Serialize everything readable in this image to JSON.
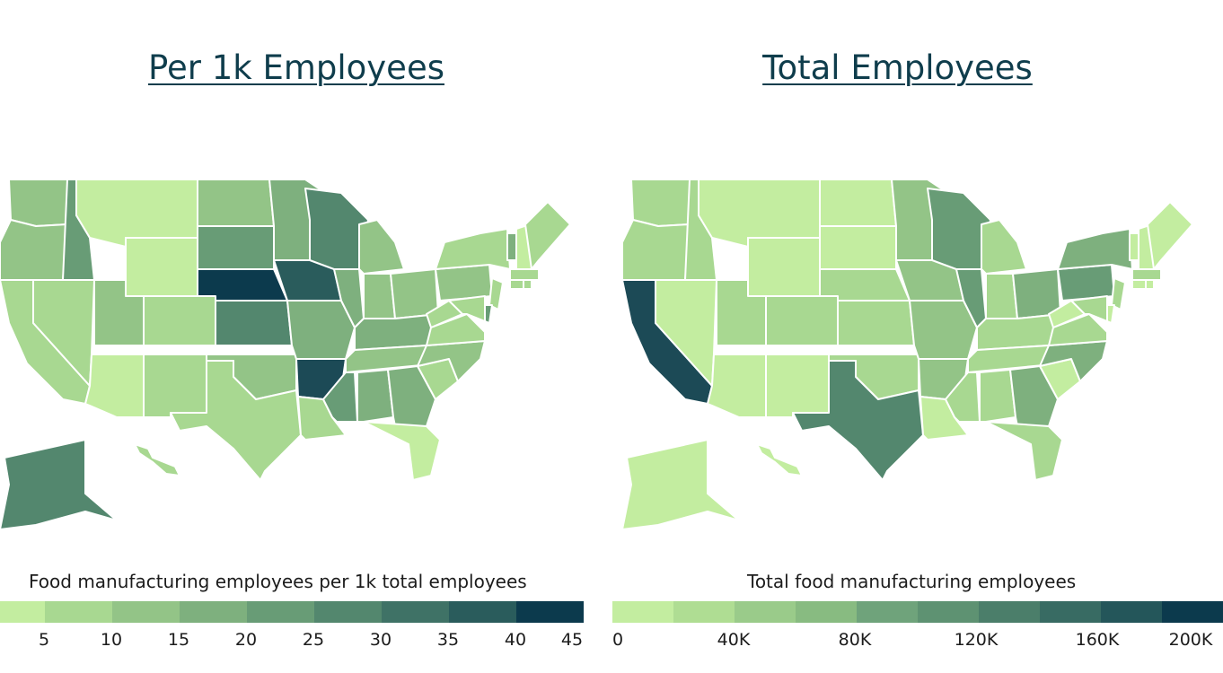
{
  "maps": [
    {
      "title": "Per 1k Employees",
      "legend_title": "Food manufacturing employees per 1k total employees",
      "legend_ticks": [
        "5",
        "10",
        "15",
        "20",
        "25",
        "30",
        "35",
        "40",
        "45"
      ],
      "legend_colors": [
        "#c3eda0",
        "#a8d891",
        "#93c487",
        "#7eb07e",
        "#689c76",
        "#53876e",
        "#3f7266",
        "#2a5c5c",
        "#0c3a4d"
      ],
      "states": [
        {
          "id": "WA",
          "fill": "#93c487"
        },
        {
          "id": "OR",
          "fill": "#93c487"
        },
        {
          "id": "CA",
          "fill": "#a8d891"
        },
        {
          "id": "ID",
          "fill": "#689c76"
        },
        {
          "id": "NV",
          "fill": "#a8d891"
        },
        {
          "id": "AZ",
          "fill": "#c3eda0"
        },
        {
          "id": "MT",
          "fill": "#c3eda0"
        },
        {
          "id": "WY",
          "fill": "#c3eda0"
        },
        {
          "id": "UT",
          "fill": "#93c487"
        },
        {
          "id": "CO",
          "fill": "#a8d891"
        },
        {
          "id": "NM",
          "fill": "#a8d891"
        },
        {
          "id": "ND",
          "fill": "#93c487"
        },
        {
          "id": "SD",
          "fill": "#689c76"
        },
        {
          "id": "NE",
          "fill": "#0c3a4d"
        },
        {
          "id": "KS",
          "fill": "#53876e"
        },
        {
          "id": "OK",
          "fill": "#93c487"
        },
        {
          "id": "TX",
          "fill": "#a8d891"
        },
        {
          "id": "MN",
          "fill": "#7eb07e"
        },
        {
          "id": "IA",
          "fill": "#2a5c5c"
        },
        {
          "id": "MO",
          "fill": "#7eb07e"
        },
        {
          "id": "AR",
          "fill": "#1c4a56"
        },
        {
          "id": "LA",
          "fill": "#a8d891"
        },
        {
          "id": "WI",
          "fill": "#53876e"
        },
        {
          "id": "IL",
          "fill": "#7eb07e"
        },
        {
          "id": "MI",
          "fill": "#93c487"
        },
        {
          "id": "IN",
          "fill": "#93c487"
        },
        {
          "id": "OH",
          "fill": "#93c487"
        },
        {
          "id": "KY",
          "fill": "#7eb07e"
        },
        {
          "id": "TN",
          "fill": "#93c487"
        },
        {
          "id": "MS",
          "fill": "#689c76"
        },
        {
          "id": "AL",
          "fill": "#7eb07e"
        },
        {
          "id": "GA",
          "fill": "#7eb07e"
        },
        {
          "id": "FL",
          "fill": "#c3eda0"
        },
        {
          "id": "SC",
          "fill": "#a8d891"
        },
        {
          "id": "NC",
          "fill": "#93c487"
        },
        {
          "id": "VA",
          "fill": "#a8d891"
        },
        {
          "id": "WV",
          "fill": "#a8d891"
        },
        {
          "id": "PA",
          "fill": "#93c487"
        },
        {
          "id": "NY",
          "fill": "#a8d891"
        },
        {
          "id": "VT",
          "fill": "#7eb07e"
        },
        {
          "id": "NH",
          "fill": "#c3eda0"
        },
        {
          "id": "ME",
          "fill": "#a8d891"
        },
        {
          "id": "MA",
          "fill": "#a8d891"
        },
        {
          "id": "CT",
          "fill": "#a8d891"
        },
        {
          "id": "RI",
          "fill": "#a8d891"
        },
        {
          "id": "NJ",
          "fill": "#a8d891"
        },
        {
          "id": "DE",
          "fill": "#689c76"
        },
        {
          "id": "MD",
          "fill": "#a8d891"
        },
        {
          "id": "AK",
          "fill": "#53876e"
        },
        {
          "id": "HI",
          "fill": "#a8d891"
        }
      ]
    },
    {
      "title": "Total Employees",
      "legend_title": "Total food manufacturing employees",
      "legend_ticks": [
        "0",
        "40K",
        "80K",
        "120K",
        "160K",
        "200K"
      ],
      "legend_colors": [
        "#c3eda0",
        "#afdd93",
        "#9acb8a",
        "#88bb81",
        "#6fa37b",
        "#5e9272",
        "#4b7e6a",
        "#386b63",
        "#24565a",
        "#0c3a4d"
      ],
      "states": [
        {
          "id": "WA",
          "fill": "#a8d891"
        },
        {
          "id": "OR",
          "fill": "#a8d891"
        },
        {
          "id": "CA",
          "fill": "#1c4a56"
        },
        {
          "id": "ID",
          "fill": "#a8d891"
        },
        {
          "id": "NV",
          "fill": "#c3eda0"
        },
        {
          "id": "AZ",
          "fill": "#c3eda0"
        },
        {
          "id": "MT",
          "fill": "#c3eda0"
        },
        {
          "id": "WY",
          "fill": "#c3eda0"
        },
        {
          "id": "UT",
          "fill": "#a8d891"
        },
        {
          "id": "CO",
          "fill": "#a8d891"
        },
        {
          "id": "NM",
          "fill": "#c3eda0"
        },
        {
          "id": "ND",
          "fill": "#c3eda0"
        },
        {
          "id": "SD",
          "fill": "#c3eda0"
        },
        {
          "id": "NE",
          "fill": "#a8d891"
        },
        {
          "id": "KS",
          "fill": "#a8d891"
        },
        {
          "id": "OK",
          "fill": "#a8d891"
        },
        {
          "id": "TX",
          "fill": "#53876e"
        },
        {
          "id": "MN",
          "fill": "#93c487"
        },
        {
          "id": "IA",
          "fill": "#93c487"
        },
        {
          "id": "MO",
          "fill": "#93c487"
        },
        {
          "id": "AR",
          "fill": "#93c487"
        },
        {
          "id": "LA",
          "fill": "#c3eda0"
        },
        {
          "id": "WI",
          "fill": "#689c76"
        },
        {
          "id": "IL",
          "fill": "#689c76"
        },
        {
          "id": "MI",
          "fill": "#a8d891"
        },
        {
          "id": "IN",
          "fill": "#a8d891"
        },
        {
          "id": "OH",
          "fill": "#7eb07e"
        },
        {
          "id": "KY",
          "fill": "#a8d891"
        },
        {
          "id": "TN",
          "fill": "#a8d891"
        },
        {
          "id": "MS",
          "fill": "#a8d891"
        },
        {
          "id": "AL",
          "fill": "#a8d891"
        },
        {
          "id": "GA",
          "fill": "#7eb07e"
        },
        {
          "id": "FL",
          "fill": "#a8d891"
        },
        {
          "id": "SC",
          "fill": "#c3eda0"
        },
        {
          "id": "NC",
          "fill": "#7eb07e"
        },
        {
          "id": "VA",
          "fill": "#a8d891"
        },
        {
          "id": "WV",
          "fill": "#c3eda0"
        },
        {
          "id": "PA",
          "fill": "#689c76"
        },
        {
          "id": "NY",
          "fill": "#7eb07e"
        },
        {
          "id": "VT",
          "fill": "#c3eda0"
        },
        {
          "id": "NH",
          "fill": "#c3eda0"
        },
        {
          "id": "ME",
          "fill": "#c3eda0"
        },
        {
          "id": "MA",
          "fill": "#a8d891"
        },
        {
          "id": "CT",
          "fill": "#c3eda0"
        },
        {
          "id": "RI",
          "fill": "#c3eda0"
        },
        {
          "id": "NJ",
          "fill": "#a8d891"
        },
        {
          "id": "DE",
          "fill": "#c3eda0"
        },
        {
          "id": "MD",
          "fill": "#a8d891"
        },
        {
          "id": "AK",
          "fill": "#c3eda0"
        },
        {
          "id": "HI",
          "fill": "#c3eda0"
        }
      ]
    }
  ]
}
